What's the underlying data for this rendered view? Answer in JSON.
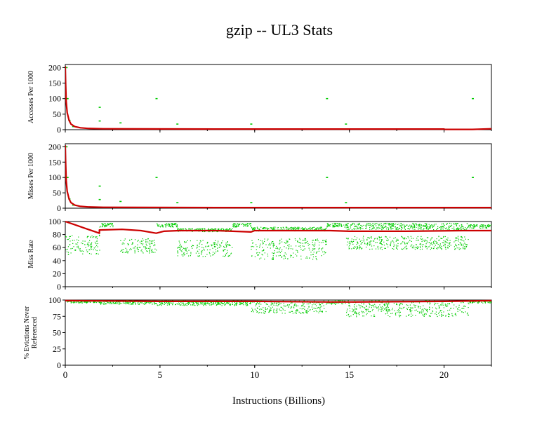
{
  "chart_data": {
    "type": "scatter",
    "title": "gzip -- UL3  Stats",
    "xlabel": "Instructions (Billions)",
    "xlim": [
      0,
      22.5
    ],
    "xticks": [
      0,
      5,
      10,
      15,
      20
    ],
    "colors": {
      "overall": "#cc0000",
      "interval": "#00cc00",
      "axis": "#000000"
    },
    "grid": false,
    "panels": [
      {
        "key": "accesses",
        "ylabel": [
          "Accesses Per 1000"
        ],
        "ylim": [
          0,
          210
        ],
        "yticks": [
          0,
          50,
          100,
          150,
          200
        ],
        "series": [
          {
            "style": "line",
            "color": "overall",
            "x": [
              0,
              0.02,
              0.05,
              0.1,
              0.2,
              0.3,
              0.5,
              0.8,
              1.2,
              2,
              4,
              8,
              12,
              16,
              20,
              20.05,
              21.5,
              22.5
            ],
            "y": [
              205,
              150,
              90,
              55,
              30,
              18,
              10,
              6,
              4,
              3,
              2.5,
              2,
              2,
              2,
              2,
              1,
              1,
              3
            ]
          },
          {
            "style": "points",
            "color": "interval",
            "x": [
              0.05,
              0.1,
              0.2,
              0.4,
              1.8,
              1.8,
              2.9,
              4.8,
              5.9,
              9.8,
              13.8,
              14.8,
              21.5
            ],
            "y": [
              200,
              100,
              30,
              10,
              72,
              28,
              22,
              100,
              18,
              18,
              100,
              18,
              100
            ]
          }
        ]
      },
      {
        "key": "misses",
        "ylabel": [
          "Misses Per 1000"
        ],
        "ylim": [
          0,
          210
        ],
        "yticks": [
          0,
          50,
          100,
          150,
          200
        ],
        "series": [
          {
            "style": "line",
            "color": "overall",
            "x": [
              0,
              0.02,
              0.05,
              0.1,
              0.2,
              0.3,
              0.5,
              0.8,
              1.2,
              2,
              4,
              8,
              12,
              16,
              20,
              22.5
            ],
            "y": [
              205,
              150,
              90,
              55,
              30,
              18,
              10,
              6,
              4,
              3,
              2.5,
              2,
              2,
              2,
              2,
              2
            ]
          },
          {
            "style": "points",
            "color": "interval",
            "x": [
              0.05,
              0.1,
              0.2,
              0.4,
              1.8,
              1.8,
              2.9,
              4.8,
              5.9,
              9.8,
              13.8,
              14.8,
              21.5
            ],
            "y": [
              200,
              100,
              30,
              10,
              72,
              28,
              22,
              100,
              18,
              18,
              100,
              18,
              100
            ]
          }
        ]
      },
      {
        "key": "missrate",
        "ylabel": [
          "Miss Rate"
        ],
        "ylim": [
          0,
          100
        ],
        "yticks": [
          0,
          20,
          40,
          60,
          80,
          100
        ],
        "series": [
          {
            "style": "line",
            "color": "overall",
            "x": [
              0,
              0.5,
              1,
              1.8,
              1.8,
              3,
              4,
              4.8,
              5.2,
              6,
              8,
              9.8,
              10,
              12,
              14,
              15,
              18,
              21,
              22.5
            ],
            "y": [
              100,
              95,
              90,
              82,
              87,
              88,
              86,
              82,
              85,
              86,
              86,
              84,
              86,
              86,
              86,
              85,
              85,
              86,
              86
            ]
          },
          {
            "style": "bands",
            "color": "interval",
            "bands": [
              {
                "x": [
                  0,
                  1.8
                ],
                "y": [
                  50,
                  80
                ]
              },
              {
                "x": [
                  1.8,
                  2.5
                ],
                "y": [
                  92,
                  98
                ]
              },
              {
                "x": [
                  2.9,
                  4.8
                ],
                "y": [
                  52,
                  75
                ]
              },
              {
                "x": [
                  4.8,
                  5.9
                ],
                "y": [
                  92,
                  98
                ]
              },
              {
                "x": [
                  5.9,
                  8.8
                ],
                "y": [
                  47,
                  72
                ]
              },
              {
                "x": [
                  5.9,
                  8.8
                ],
                "y": [
                  85,
                  90
                ]
              },
              {
                "x": [
                  8.8,
                  9.8
                ],
                "y": [
                  92,
                  98
                ]
              },
              {
                "x": [
                  9.8,
                  13.8
                ],
                "y": [
                  42,
                  75
                ]
              },
              {
                "x": [
                  9.8,
                  13.8
                ],
                "y": [
                  86,
                  92
                ]
              },
              {
                "x": [
                  13.8,
                  14.8
                ],
                "y": [
                  92,
                  98
                ]
              },
              {
                "x": [
                  14.8,
                  21.3
                ],
                "y": [
                  58,
                  78
                ]
              },
              {
                "x": [
                  14.8,
                  21.3
                ],
                "y": [
                  88,
                  98
                ]
              },
              {
                "x": [
                  21.3,
                  22.5
                ],
                "y": [
                  90,
                  96
                ]
              }
            ]
          }
        ]
      },
      {
        "key": "evictions",
        "ylabel": [
          "% Evictions Never",
          "Referenced"
        ],
        "ylim": [
          0,
          100
        ],
        "yticks": [
          0,
          25,
          50,
          75,
          100
        ],
        "series": [
          {
            "style": "line",
            "color": "overall",
            "x": [
              0,
              5,
              10,
              14,
              15,
              20,
              22.5
            ],
            "y": [
              99,
              98,
              98,
              97,
              97,
              98,
              99
            ]
          },
          {
            "style": "bands",
            "color": "interval",
            "bands": [
              {
                "x": [
                  0,
                  1.8
                ],
                "y": [
                  96,
                  100
                ]
              },
              {
                "x": [
                  1.8,
                  4.8
                ],
                "y": [
                  94,
                  100
                ]
              },
              {
                "x": [
                  4.8,
                  9.8
                ],
                "y": [
                  92,
                  100
                ]
              },
              {
                "x": [
                  9.8,
                  13.8
                ],
                "y": [
                  80,
                  100
                ]
              },
              {
                "x": [
                  13.8,
                  14.8
                ],
                "y": [
                  94,
                  100
                ]
              },
              {
                "x": [
                  14.8,
                  21.3
                ],
                "y": [
                  75,
                  100
                ]
              },
              {
                "x": [
                  21.3,
                  22.5
                ],
                "y": [
                  96,
                  100
                ]
              }
            ]
          }
        ]
      }
    ]
  }
}
